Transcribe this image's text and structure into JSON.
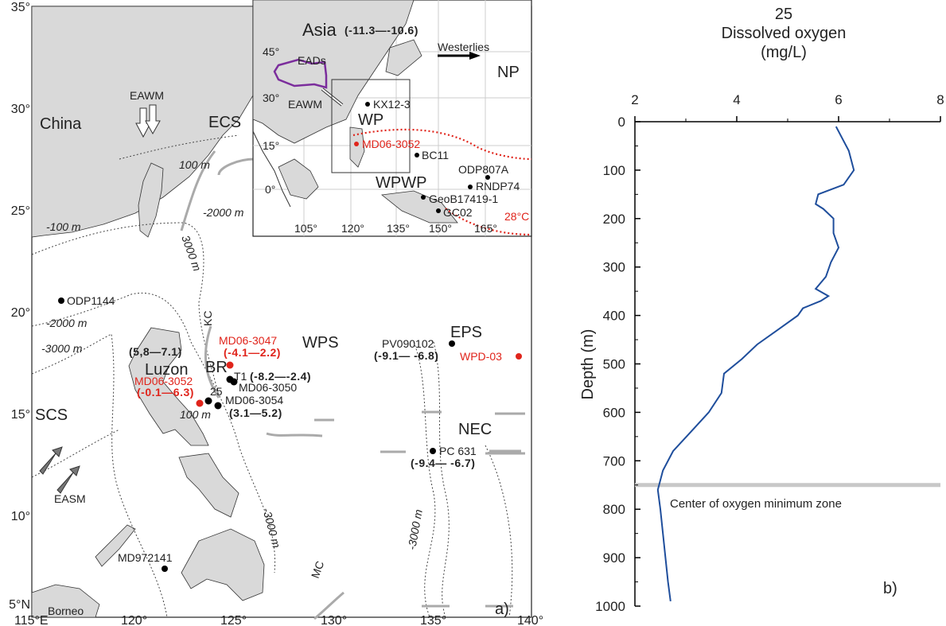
{
  "panel_a": {
    "label": "a)",
    "x_ticks": [
      "115°E",
      "120°",
      "125°",
      "130°",
      "135°",
      "140°"
    ],
    "y_ticks": [
      "35°",
      "30°",
      "25°",
      "20°",
      "15°",
      "10°",
      "5°N"
    ],
    "regions": {
      "china": "China",
      "ecs": "ECS",
      "scs": "SCS",
      "luzon": "Luzon",
      "borneo": "Borneo",
      "wps": "WPS",
      "eps": "EPS",
      "nec": "NEC",
      "br": "BR"
    },
    "currents": {
      "eawm": "EAWM",
      "easm": "EASM",
      "kc": "KC",
      "mc": "MC"
    },
    "contours": {
      "c100a": "100 m",
      "c2000a": "-2000 m",
      "c3000a": "3000 m",
      "c100b": "-100 m",
      "c2000b": "-2000 m",
      "c3000b": "-3000 m",
      "c100c": "100 m",
      "c3000c": "-3000 m",
      "c3000d": "-3000 m"
    },
    "sites": [
      {
        "name": "ODP1144",
        "color": "#000000"
      },
      {
        "name": "MD06-3047",
        "value": "(-4.1—2.2)",
        "color": "#e0241b"
      },
      {
        "name": "T1",
        "value": "(-8.2—-2.4)",
        "color": "#000000"
      },
      {
        "name": "MD06-3050",
        "color": "#000000"
      },
      {
        "name": "MD06-3052",
        "value": "(-0.1—6.3)",
        "color": "#e0241b"
      },
      {
        "name": "25",
        "color": "#000000"
      },
      {
        "name": "MD06-3054",
        "value": "(3.1—5.2)",
        "color": "#000000"
      },
      {
        "name": "PV090102",
        "value": "(-9.1— -6.8)",
        "color": "#000000"
      },
      {
        "name": "WPD-03",
        "color": "#e0241b"
      },
      {
        "name": "PC 631",
        "value": "(-9.4— -6.7)",
        "color": "#000000"
      },
      {
        "name": "MD972141",
        "color": "#000000"
      }
    ],
    "luzon_range": "(5,8—7.1)",
    "inset": {
      "x_ticks": [
        "105°",
        "120°",
        "135°",
        "150°",
        "165°"
      ],
      "y_ticks": [
        "45°",
        "30°",
        "15°",
        "0°"
      ],
      "asia": "Asia",
      "asia_range": "(-11.3—-10.6)",
      "eads": "EADs",
      "eawm": "EAWM",
      "westerlies": "Westerlies",
      "np": "NP",
      "wp": "WP",
      "wpwp": "WPWP",
      "isotherm": "28°C",
      "sites": [
        "KX12-3",
        "MD06-3052",
        "BC11",
        "ODP807A",
        "RNDP74",
        "GeoB17419-1",
        "GC02"
      ]
    }
  },
  "panel_b": {
    "label": "b)",
    "reference_line_label": "Center of oxygen minimum zone"
  },
  "chart_data": {
    "type": "line",
    "title": "25",
    "xlabel": "Dissolved oxygen",
    "xunit": "(mg/L)",
    "ylabel": "Depth (m)",
    "xlim": [
      2,
      8
    ],
    "ylim": [
      1000,
      0
    ],
    "x_ticks": [
      "2",
      "4",
      "6",
      "8"
    ],
    "y_ticks": [
      "0",
      "100",
      "200",
      "300",
      "400",
      "500",
      "600",
      "700",
      "800",
      "900",
      "1000"
    ],
    "reference_line_depth": 750,
    "series": [
      {
        "color": "#1f4e9c",
        "points": [
          [
            10,
            5.95
          ],
          [
            30,
            6.05
          ],
          [
            60,
            6.2
          ],
          [
            100,
            6.3
          ],
          [
            130,
            6.1
          ],
          [
            150,
            5.6
          ],
          [
            170,
            5.55
          ],
          [
            180,
            5.7
          ],
          [
            200,
            5.9
          ],
          [
            230,
            5.9
          ],
          [
            260,
            6.0
          ],
          [
            290,
            5.85
          ],
          [
            320,
            5.75
          ],
          [
            345,
            5.55
          ],
          [
            360,
            5.8
          ],
          [
            370,
            5.65
          ],
          [
            385,
            5.3
          ],
          [
            400,
            5.2
          ],
          [
            430,
            4.8
          ],
          [
            460,
            4.4
          ],
          [
            490,
            4.1
          ],
          [
            520,
            3.75
          ],
          [
            560,
            3.7
          ],
          [
            600,
            3.45
          ],
          [
            640,
            3.1
          ],
          [
            680,
            2.75
          ],
          [
            720,
            2.55
          ],
          [
            760,
            2.45
          ],
          [
            800,
            2.5
          ],
          [
            850,
            2.55
          ],
          [
            900,
            2.6
          ],
          [
            950,
            2.65
          ],
          [
            990,
            2.7
          ]
        ]
      }
    ]
  }
}
